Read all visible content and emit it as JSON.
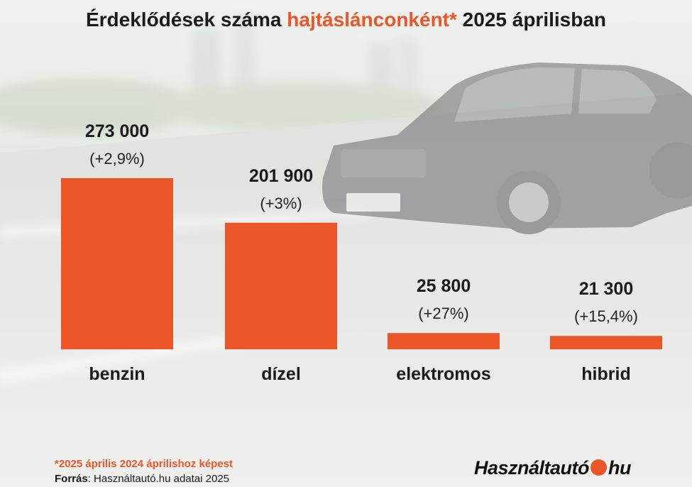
{
  "title": {
    "part1": "Érdeklődések száma ",
    "accent": "hajtáslánconként*",
    "part2": " 2025 áprilisban"
  },
  "chart_data": {
    "type": "bar",
    "categories": [
      "benzin",
      "dízel",
      "elektromos",
      "hibrid"
    ],
    "values": [
      273000,
      201900,
      25800,
      21300
    ],
    "value_labels": [
      "273 000",
      "201 900",
      "25 800",
      "21 300"
    ],
    "change_labels": [
      "(+2,9%)",
      "(+3%)",
      "(+27%)",
      "(+15,4%)"
    ],
    "bar_color": "#ec5527",
    "grid": false,
    "legend": "none"
  },
  "footnote": "*2025 április 2024 áprilishoz képest",
  "source": {
    "label": "Forrás",
    "text": ": Használtautó.hu adatai 2025"
  },
  "logo": {
    "left": "Használtautó",
    "right": "hu",
    "dot_color": "#ec5527"
  },
  "colors": {
    "accent": "#ec5527",
    "text": "#1a1a1a"
  }
}
